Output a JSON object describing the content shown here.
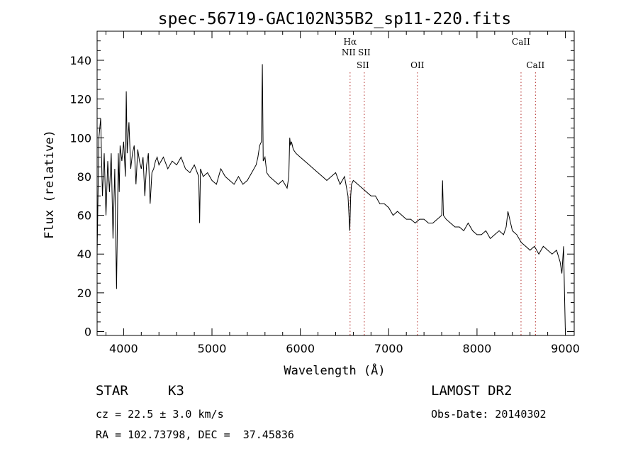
{
  "chart_data": {
    "type": "line",
    "title": "spec-56719-GAC102N35B2_sp11-220.fits",
    "xlabel": "Wavelength (Å)",
    "ylabel": "Flux (relative)",
    "xlim": [
      3700,
      9100
    ],
    "ylim": [
      -2,
      155
    ],
    "xticks": [
      4000,
      5000,
      6000,
      7000,
      8000,
      9000
    ],
    "yticks": [
      0,
      20,
      40,
      60,
      80,
      100,
      120,
      140
    ],
    "grid": false,
    "series": [
      {
        "x": [
          3700,
          3720,
          3740,
          3760,
          3780,
          3800,
          3820,
          3840,
          3860,
          3880,
          3900,
          3920,
          3940,
          3950,
          3960,
          3980,
          4000,
          4020,
          4030,
          4040,
          4060,
          4080,
          4100,
          4120,
          4140,
          4160,
          4180,
          4200,
          4220,
          4240,
          4260,
          4280,
          4300,
          4320,
          4340,
          4360,
          4380,
          4400,
          4450,
          4500,
          4550,
          4600,
          4650,
          4700,
          4750,
          4800,
          4850,
          4860,
          4870,
          4900,
          4950,
          5000,
          5050,
          5100,
          5150,
          5200,
          5250,
          5300,
          5350,
          5400,
          5450,
          5500,
          5520,
          5540,
          5560,
          5570,
          5580,
          5600,
          5620,
          5650,
          5700,
          5750,
          5800,
          5850,
          5870,
          5880,
          5890,
          5900,
          5920,
          5950,
          6000,
          6050,
          6100,
          6150,
          6200,
          6250,
          6300,
          6350,
          6400,
          6450,
          6500,
          6540,
          6560,
          6570,
          6580,
          6600,
          6650,
          6700,
          6750,
          6800,
          6850,
          6900,
          6950,
          7000,
          7050,
          7100,
          7150,
          7200,
          7250,
          7300,
          7350,
          7400,
          7450,
          7500,
          7550,
          7600,
          7610,
          7620,
          7650,
          7700,
          7750,
          7800,
          7850,
          7900,
          7950,
          8000,
          8050,
          8100,
          8150,
          8200,
          8250,
          8300,
          8330,
          8350,
          8400,
          8450,
          8500,
          8550,
          8600,
          8650,
          8700,
          8750,
          8800,
          8850,
          8900,
          8940,
          8960,
          8980,
          8990,
          9000
        ],
        "values": [
          40,
          100,
          110,
          70,
          92,
          60,
          88,
          72,
          92,
          48,
          84,
          22,
          92,
          72,
          96,
          88,
          98,
          80,
          124,
          92,
          108,
          84,
          92,
          96,
          76,
          94,
          88,
          84,
          90,
          70,
          86,
          92,
          66,
          82,
          84,
          88,
          90,
          86,
          90,
          84,
          88,
          86,
          90,
          84,
          82,
          86,
          80,
          56,
          84,
          80,
          82,
          78,
          76,
          84,
          80,
          78,
          76,
          80,
          76,
          78,
          82,
          86,
          90,
          96,
          98,
          138,
          88,
          90,
          82,
          80,
          78,
          76,
          78,
          74,
          80,
          100,
          96,
          98,
          94,
          92,
          90,
          88,
          86,
          84,
          82,
          80,
          78,
          80,
          82,
          76,
          80,
          70,
          52,
          70,
          76,
          78,
          76,
          74,
          72,
          70,
          70,
          66,
          66,
          64,
          60,
          62,
          60,
          58,
          58,
          56,
          58,
          58,
          56,
          56,
          58,
          60,
          78,
          60,
          58,
          56,
          54,
          54,
          52,
          56,
          52,
          50,
          50,
          52,
          48,
          50,
          52,
          50,
          54,
          62,
          52,
          50,
          46,
          44,
          42,
          44,
          40,
          44,
          42,
          40,
          42,
          36,
          30,
          44,
          20,
          0
        ]
      }
    ],
    "lines": [
      {
        "label1": "Hα",
        "label2": "NII",
        "x": 6563
      },
      {
        "label1": "SII",
        "label2": "SII",
        "x": 6724
      },
      {
        "label1": "OII",
        "label2": "",
        "x": 7325
      },
      {
        "label1": "CaII",
        "label2": "",
        "x": 8498
      },
      {
        "label1": "CaII",
        "label2": "",
        "x": 8662
      }
    ]
  },
  "info": {
    "object_class": "STAR",
    "subclass": "K3",
    "cz": "cz = 22.5 ± 3.0 km/s",
    "coords": "RA = 102.73798, DEC =  37.45836",
    "survey": "LAMOST DR2",
    "obs_date": "Obs-Date: 20140302"
  }
}
